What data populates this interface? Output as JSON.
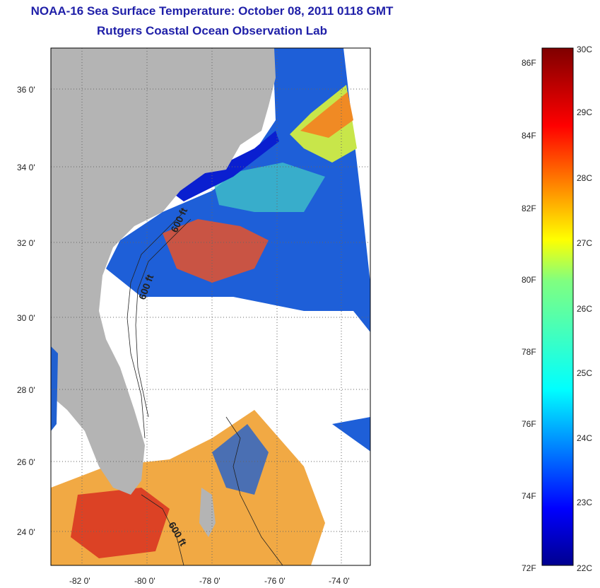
{
  "header": {
    "title": "NOAA-16 Sea Surface Temperature:  October 08, 2011 0118 GMT",
    "subtitle": "Rutgers Coastal Ocean Observation Lab"
  },
  "map": {
    "lat_ticks": [
      "36 0'",
      "34 0'",
      "32 0'",
      "30 0'",
      "28 0'",
      "26 0'",
      "24 0'"
    ],
    "lon_ticks": [
      "-82 0'",
      "-80 0'",
      "-78 0'",
      "-76 0'",
      "-74 0'"
    ],
    "isobath_labels": [
      "600 ft",
      "600 ft",
      "600 ft"
    ],
    "land_color": "#b4b4b4",
    "cloud_color": "#ffffff"
  },
  "colorbar": {
    "celsius_labels": [
      "30C",
      "29C",
      "28C",
      "27C",
      "26C",
      "25C",
      "24C",
      "23C",
      "22C"
    ],
    "fahrenheit_labels": [
      "86F",
      "84F",
      "82F",
      "80F",
      "78F",
      "76F",
      "74F",
      "72F"
    ],
    "colors": [
      "#7f0000",
      "#ff0000",
      "#ff8000",
      "#ffff00",
      "#80ff80",
      "#00ffff",
      "#0080ff",
      "#0000ff",
      "#00008f"
    ]
  }
}
